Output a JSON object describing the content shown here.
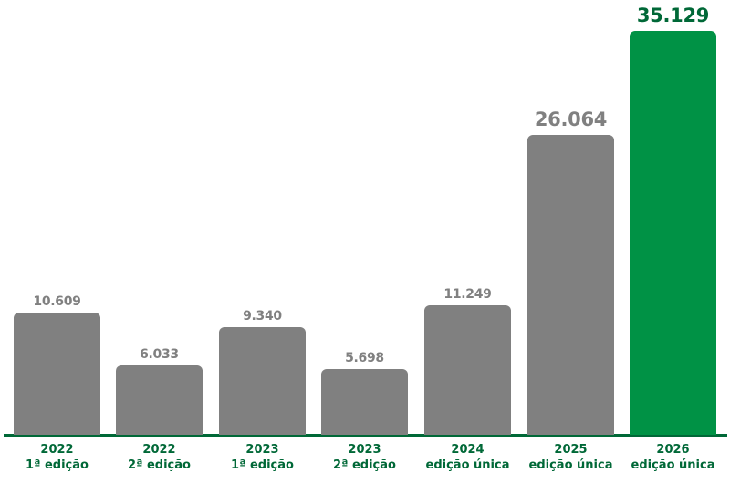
{
  "colors": {
    "bar_default": "#808080",
    "bar_highlight": "#009245",
    "value_default": "#808080",
    "value_highlight": "#006837",
    "axis": "#006837",
    "label": "#006837"
  },
  "chart_data": {
    "type": "bar",
    "title": "",
    "xlabel": "",
    "ylabel": "",
    "grid": false,
    "legend": null,
    "categories": [
      "2022 1ª edição",
      "2022 2ª edição",
      "2023 1ª edição",
      "2023 2ª edição",
      "2024 edição única",
      "2025 edição única",
      "2026 edição única"
    ],
    "values": [
      10609,
      6033,
      9340,
      5698,
      11249,
      26064,
      35129
    ],
    "value_labels": [
      "10.609",
      "6.033",
      "9.340",
      "5.698",
      "11.249",
      "26.064",
      "35.129"
    ],
    "highlighted_index": 6,
    "ylim": [
      0,
      35129
    ]
  },
  "bars": [
    {
      "year": "2022",
      "edition": "1ª edição",
      "value_label": "10.609",
      "value": 10609,
      "highlight": false
    },
    {
      "year": "2022",
      "edition": "2ª edição",
      "value_label": "6.033",
      "value": 6033,
      "highlight": false
    },
    {
      "year": "2023",
      "edition": "1ª edição",
      "value_label": "9.340",
      "value": 9340,
      "highlight": false
    },
    {
      "year": "2023",
      "edition": "2ª edição",
      "value_label": "5.698",
      "value": 5698,
      "highlight": false
    },
    {
      "year": "2024",
      "edition": "edição única",
      "value_label": "11.249",
      "value": 11249,
      "highlight": false
    },
    {
      "year": "2025",
      "edition": "edição única",
      "value_label": "26.064",
      "value": 26064,
      "highlight": false
    },
    {
      "year": "2026",
      "edition": "edição única",
      "value_label": "35.129",
      "value": 35129,
      "highlight": true
    }
  ]
}
